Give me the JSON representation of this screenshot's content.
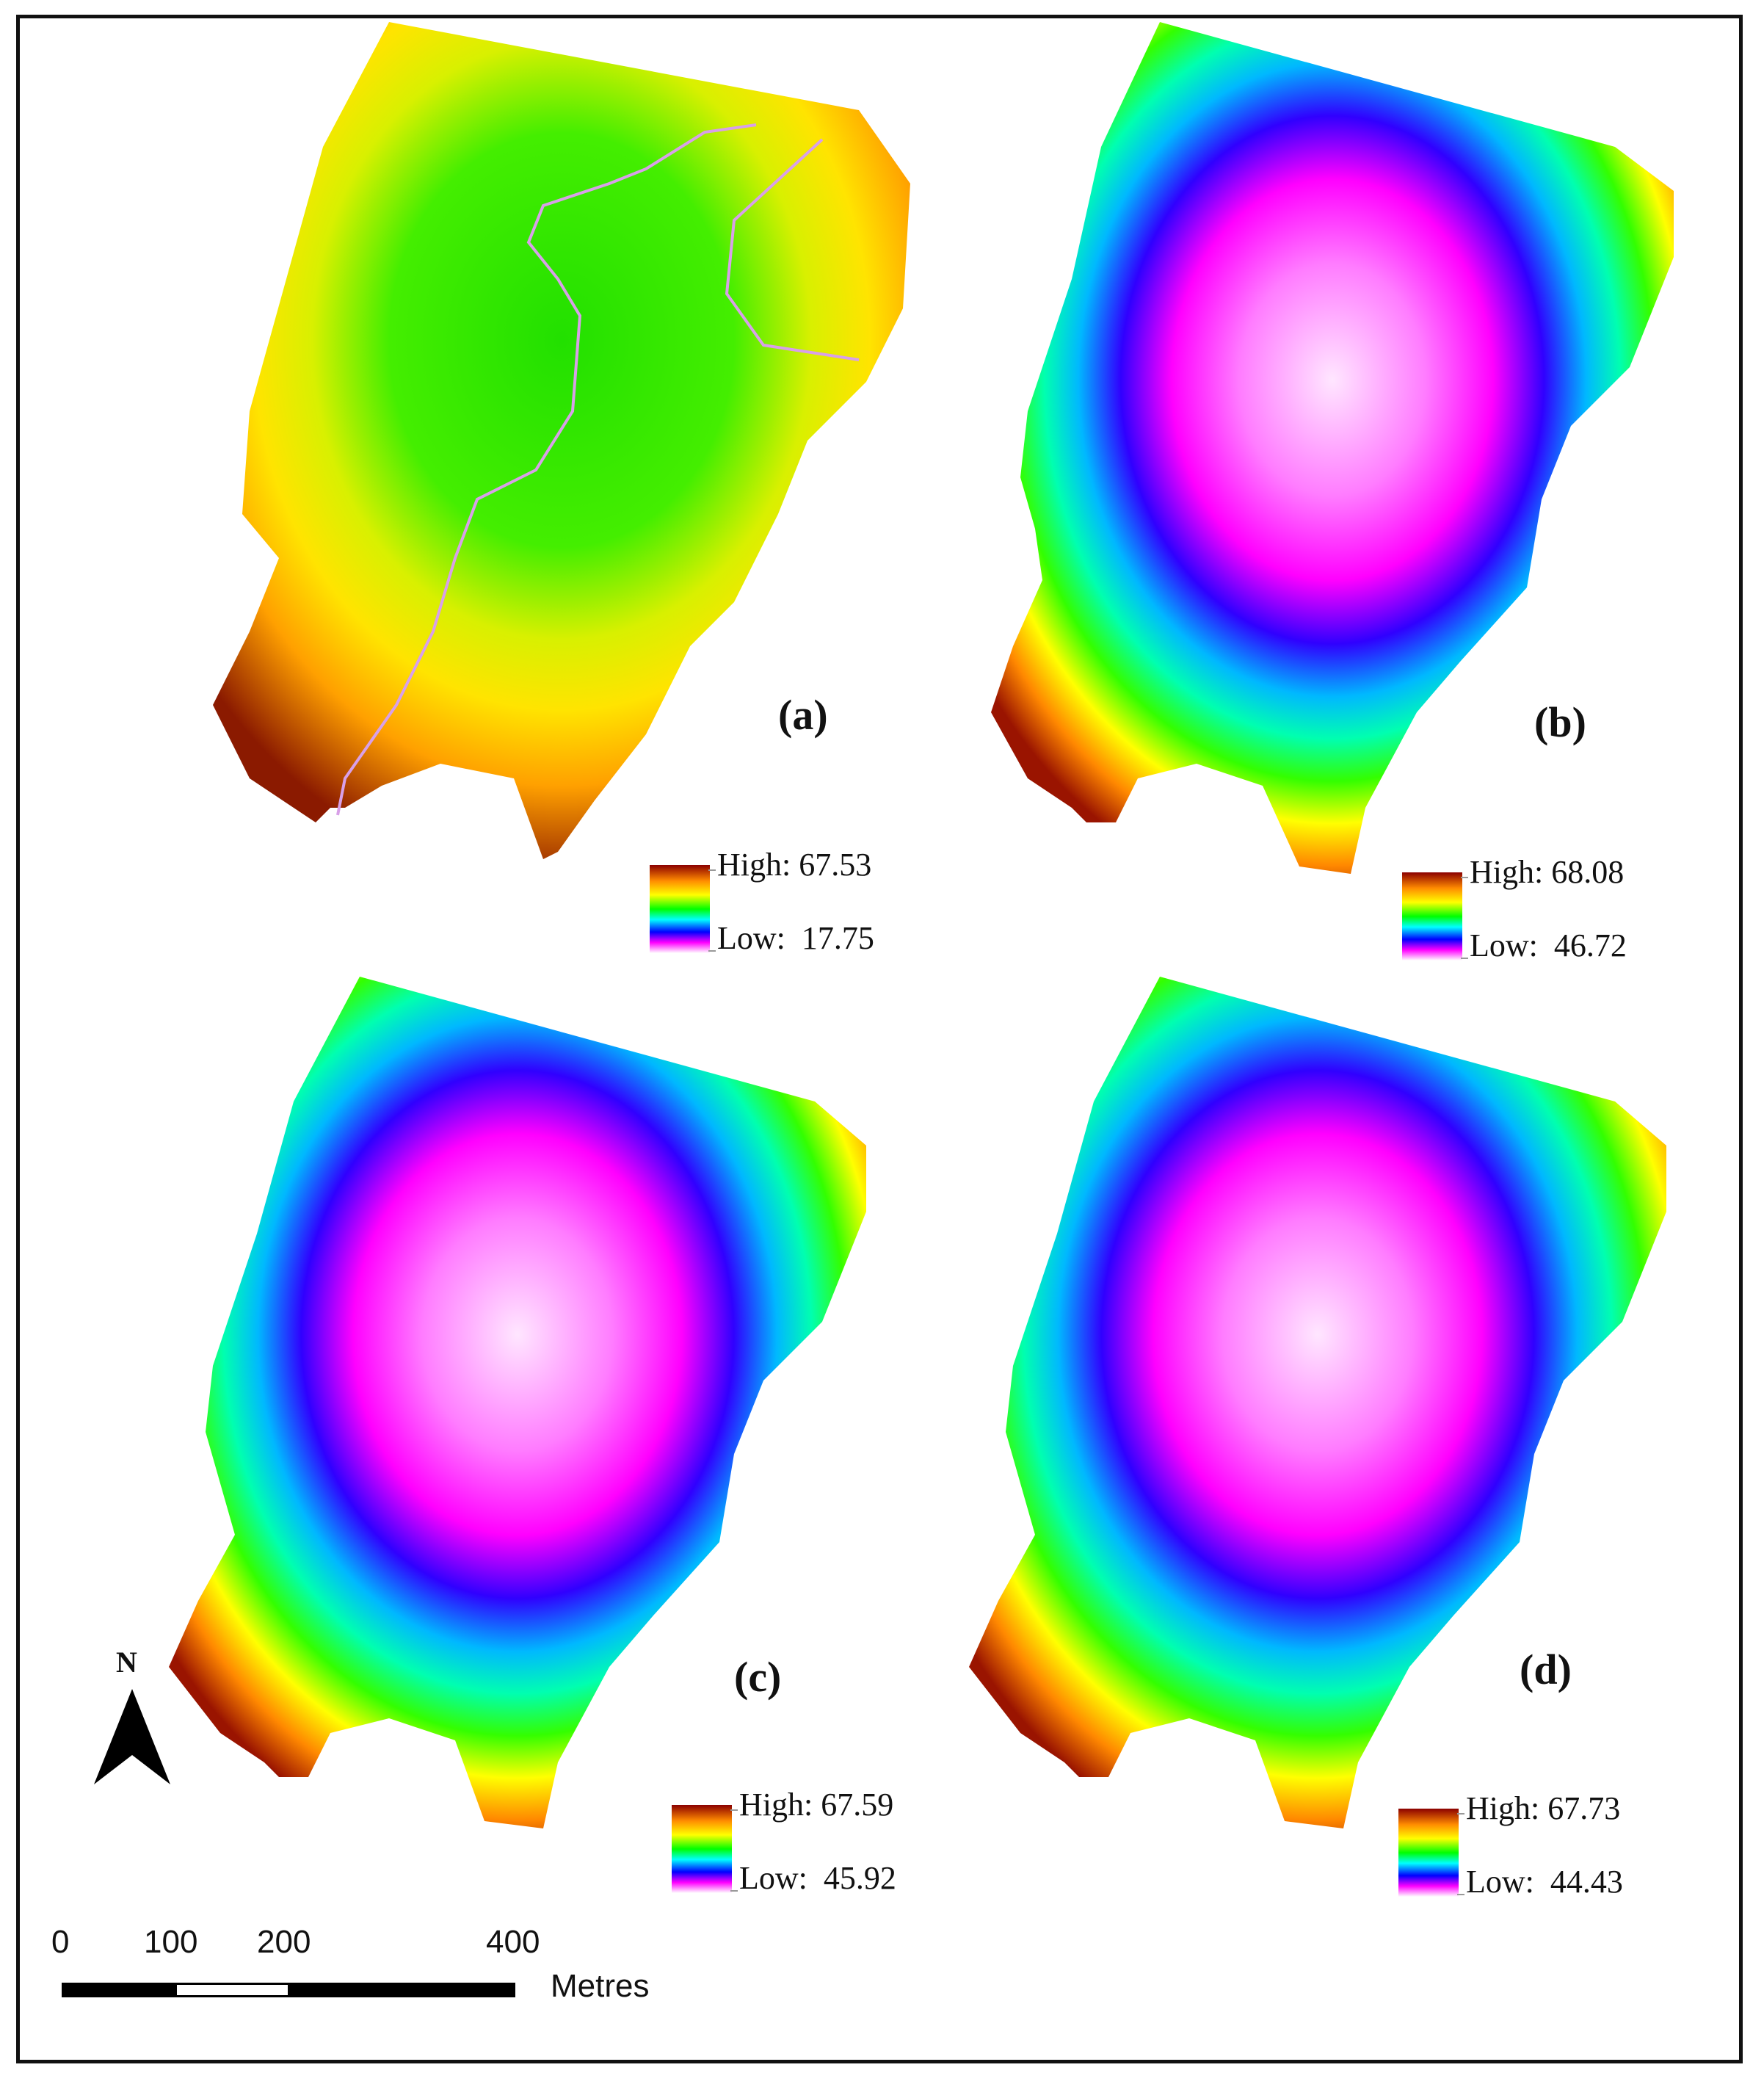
{
  "panels": [
    {
      "label": "(a)",
      "legend": {
        "high": "High: 67.53",
        "low": "Low:  17.75"
      }
    },
    {
      "label": "(b)",
      "legend": {
        "high": "High: 68.08",
        "low": "Low:  46.72"
      }
    },
    {
      "label": "(c)",
      "legend": {
        "high": "High: 67.59",
        "low": "Low:  45.92"
      }
    },
    {
      "label": "(d)",
      "legend": {
        "high": "High: 67.73",
        "low": "Low:  44.43"
      }
    }
  ],
  "north_arrow": {
    "label": "N"
  },
  "scale_bar": {
    "ticks": [
      "0",
      "100",
      "200",
      "400"
    ],
    "units": "Metres"
  },
  "colors": {
    "ramp": [
      "#8b0000",
      "#ff8c00",
      "#ffff00",
      "#00ff00",
      "#00ffff",
      "#0000ff",
      "#ff00ff",
      "#ffffff"
    ]
  }
}
